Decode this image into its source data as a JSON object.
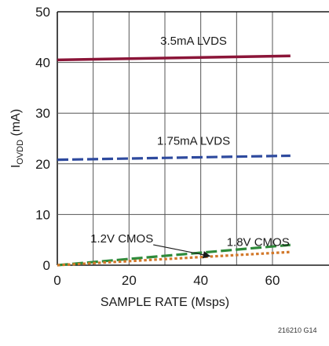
{
  "chart_data": {
    "type": "line",
    "xlabel": "SAMPLE RATE (Msps)",
    "ylabel_main": "I",
    "ylabel_sub": "OVDD",
    "ylabel_unit": " (mA)",
    "figure_code": "216210 G14",
    "xlim": [
      0,
      65
    ],
    "ylim": [
      0,
      50
    ],
    "x_ticks": [
      0,
      20,
      40,
      60
    ],
    "y_ticks": [
      0,
      10,
      20,
      30,
      40,
      50
    ],
    "grid": true,
    "series": [
      {
        "name": "3.5mA LVDS",
        "color": "#8b1538",
        "style": "solid",
        "x": [
          0,
          65
        ],
        "y": [
          40.5,
          41.3
        ]
      },
      {
        "name": "1.75mA LVDS",
        "color": "#2e4a9e",
        "style": "dashed",
        "x": [
          0,
          65
        ],
        "y": [
          20.8,
          21.6
        ]
      },
      {
        "name": "1.2V CMOS",
        "color": "#2e8b3a",
        "style": "dashed",
        "x": [
          0,
          65
        ],
        "y": [
          0,
          4.0
        ]
      },
      {
        "name": "1.8V CMOS",
        "color": "#d2782a",
        "style": "dotted",
        "x": [
          0,
          65
        ],
        "y": [
          0,
          2.6
        ]
      }
    ],
    "annotations": [
      {
        "text": "3.5mA LVDS",
        "x": 38,
        "y": 43.5
      },
      {
        "text": "1.75mA LVDS",
        "x": 38,
        "y": 23.8
      },
      {
        "text": "1.2V CMOS",
        "x": 18,
        "y": 4.5,
        "arrow_to": [
          42.5,
          1.8
        ]
      },
      {
        "text": "1.8V CMOS",
        "x": 56,
        "y": 3.8
      }
    ]
  }
}
